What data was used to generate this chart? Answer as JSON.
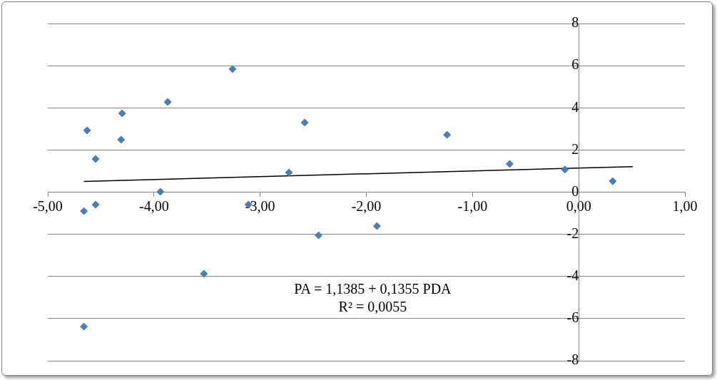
{
  "chart_data": {
    "type": "scatter",
    "series": [
      {
        "color": "#4a7ebb",
        "marker": "diamond",
        "x": [
          -4.66,
          -4.63,
          -4.55,
          -4.55,
          -4.3,
          -4.31,
          -3.87,
          -3.94,
          -3.53,
          -3.26,
          -3.11,
          -2.73,
          -2.58,
          -2.45,
          -1.9,
          -1.24,
          -0.65,
          -0.13,
          0.32,
          -4.66
        ],
        "values": [
          -0.9,
          2.93,
          1.57,
          -0.59,
          3.74,
          2.49,
          4.28,
          0.02,
          -3.87,
          5.84,
          -0.59,
          0.93,
          3.3,
          -2.05,
          -1.61,
          2.72,
          1.34,
          1.07,
          0.52,
          -6.38
        ]
      },
      {
        "type": "line",
        "color": "#000000",
        "marker": "none",
        "x": [
          -4.66,
          0.51
        ],
        "values": [
          0.51,
          1.21
        ]
      }
    ],
    "xlim": [
      -5,
      1
    ],
    "ylim": [
      -8,
      8
    ],
    "xticks": [
      {
        "value": -5,
        "label": "-5,00"
      },
      {
        "value": -4,
        "label": "-4,00"
      },
      {
        "value": -3,
        "label": "-3,00"
      },
      {
        "value": -2,
        "label": "-2,00"
      },
      {
        "value": -1,
        "label": "-1,00"
      },
      {
        "value": 0,
        "label": "0,00"
      },
      {
        "value": 1,
        "label": "1,00"
      }
    ],
    "yticks": [
      -8,
      -6,
      -4,
      -2,
      0,
      2,
      4,
      6,
      8
    ],
    "grid": "y",
    "annotations": [
      "PA = 1,1385 + 0,1355 PDA",
      "R² = 0,0055"
    ]
  }
}
